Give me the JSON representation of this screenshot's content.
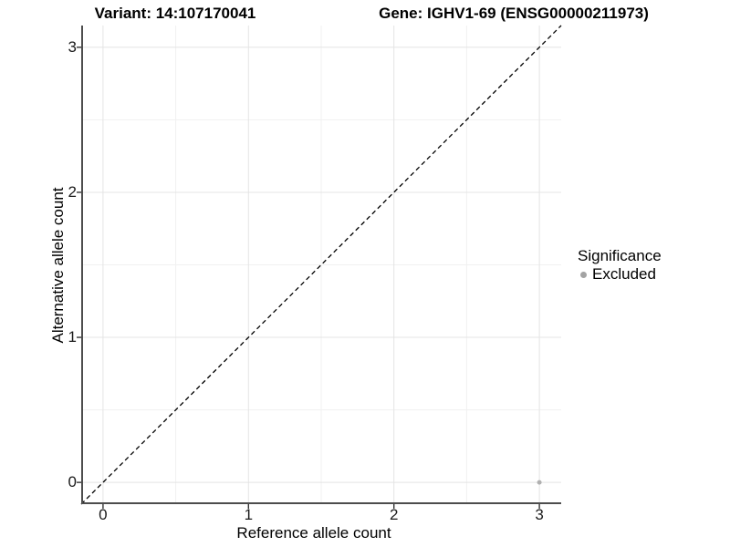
{
  "header": {
    "variant_title": "Variant: 14:107170041",
    "gene_title": "Gene: IGHV1-69 (ENSG00000211973)"
  },
  "chart_data": {
    "type": "scatter",
    "title": "Variant: 14:107170041 | Gene: IGHV1-69 (ENSG00000211973)",
    "xlabel": "Reference allele count",
    "ylabel": "Alternative allele count",
    "xlim": [
      -0.15,
      3.15
    ],
    "ylim": [
      -0.15,
      3.15
    ],
    "xticks": [
      0,
      1,
      2,
      3
    ],
    "yticks": [
      0,
      1,
      2,
      3
    ],
    "x_minor_ticks": [
      0.5,
      1.5,
      2.5
    ],
    "y_minor_ticks": [
      0.5,
      1.5,
      2.5
    ],
    "grid": true,
    "legend": {
      "title": "Significance",
      "position": "right",
      "items": [
        {
          "label": "Excluded",
          "color": "#a3a3a3"
        }
      ]
    },
    "series": [
      {
        "name": "Excluded",
        "color": "#b0b0b0",
        "points": [
          {
            "x": 3,
            "y": 0
          }
        ]
      }
    ],
    "reference_line": {
      "style": "dashed",
      "color": "#000000",
      "from": {
        "x": -0.15,
        "y": -0.15
      },
      "to": {
        "x": 3.15,
        "y": 3.15
      }
    }
  },
  "colors": {
    "background": "#ffffff",
    "grid_major": "#e4e4e4",
    "grid_minor": "#f1f1f1",
    "axis_line": "#4d4d4d",
    "tick": "#333333",
    "text": "#000000"
  }
}
